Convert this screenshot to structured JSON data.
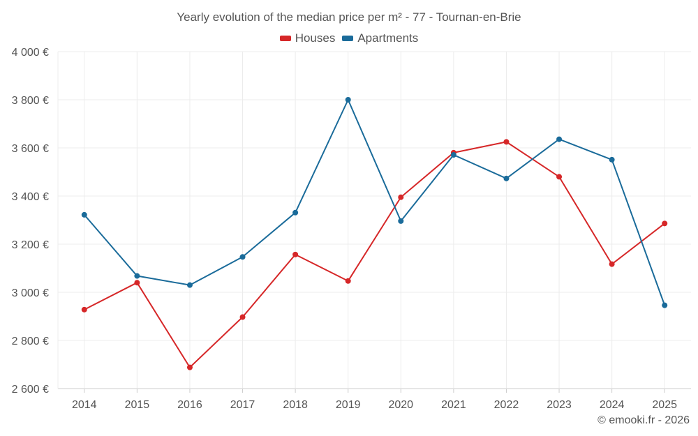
{
  "chart_data": {
    "type": "line",
    "title": "Yearly evolution of the median price per m² - 77 - Tournan-en-Brie",
    "categories": [
      "2014",
      "2015",
      "2016",
      "2017",
      "2018",
      "2019",
      "2020",
      "2021",
      "2022",
      "2023",
      "2024",
      "2025"
    ],
    "series": [
      {
        "name": "Houses",
        "color": "#d62728",
        "values": [
          2928,
          3040,
          2688,
          2897,
          3157,
          3047,
          3395,
          3580,
          3625,
          3480,
          3117,
          3286
        ]
      },
      {
        "name": "Apartments",
        "color": "#1a6b9a",
        "values": [
          3322,
          3068,
          3030,
          3147,
          3331,
          3800,
          3296,
          3571,
          3473,
          3636,
          3551,
          2946
        ]
      }
    ],
    "ylim": [
      2600,
      4000
    ],
    "yticks": [
      2600,
      2800,
      3000,
      3200,
      3400,
      3600,
      3800,
      4000
    ],
    "ytick_labels": [
      "2 600 €",
      "2 800 €",
      "3 000 €",
      "3 200 €",
      "3 400 €",
      "3 600 €",
      "3 800 €",
      "4 000 €"
    ],
    "xlabel": "",
    "ylabel": "",
    "grid": true,
    "legend_position": "top-center"
  },
  "credit": "© emooki.fr - 2026"
}
